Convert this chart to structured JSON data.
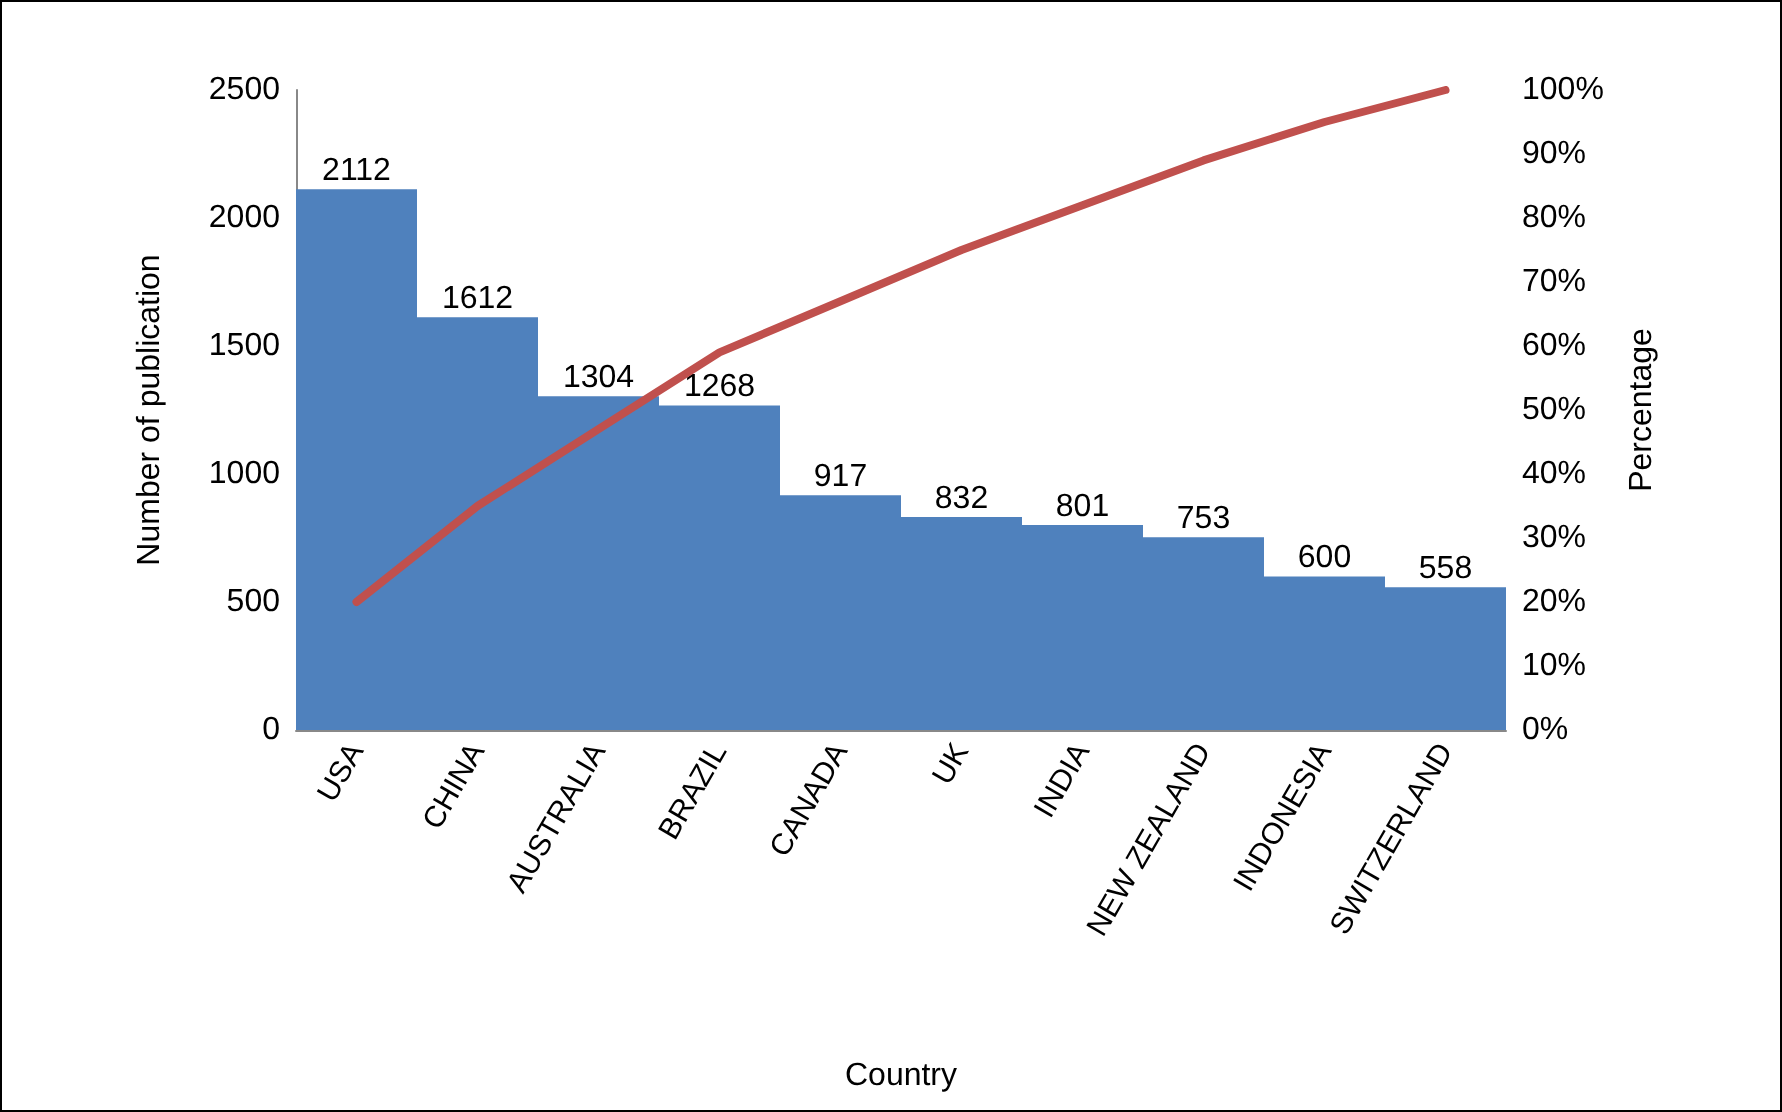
{
  "chart_data": {
    "type": "bar",
    "xlabel": "Country",
    "ylabel": "Number of publication",
    "y2label": "Percentage",
    "categories": [
      "USA",
      "CHINA",
      "AUSTRALIA",
      "BRAZIL",
      "CANADA",
      "UK",
      "INDIA",
      "NEW ZEALAND",
      "INDONESIA",
      "SWITZERLAND"
    ],
    "series": [
      {
        "color": "#4f81bd",
        "values": [
          2112,
          1612,
          1304,
          1268,
          917,
          832,
          801,
          753,
          600,
          558
        ],
        "value_labels": [
          "2112",
          "1612",
          "1304",
          "1268",
          "917",
          "832",
          "801",
          "753",
          "600",
          "558"
        ]
      },
      {
        "type": "line",
        "axis": "y2",
        "color": "#c0504d",
        "values": [
          20,
          35,
          47,
          59,
          67,
          75,
          82,
          89,
          95,
          100
        ]
      }
    ],
    "ylim": [
      0,
      2500
    ],
    "yticks": [
      0,
      500,
      1000,
      1500,
      2000,
      2500
    ],
    "y2lim": [
      0,
      100
    ],
    "y2ticks": [
      {
        "value": 0,
        "label": "0%"
      },
      {
        "value": 10,
        "label": "10%"
      },
      {
        "value": 20,
        "label": "20%"
      },
      {
        "value": 30,
        "label": "30%"
      },
      {
        "value": 40,
        "label": "40%"
      },
      {
        "value": 50,
        "label": "50%"
      },
      {
        "value": 60,
        "label": "60%"
      },
      {
        "value": 70,
        "label": "70%"
      },
      {
        "value": 80,
        "label": "80%"
      },
      {
        "value": 90,
        "label": "90%"
      },
      {
        "value": 100,
        "label": "100%"
      }
    ],
    "grid": false,
    "marker": "none",
    "line_style": "solid"
  }
}
